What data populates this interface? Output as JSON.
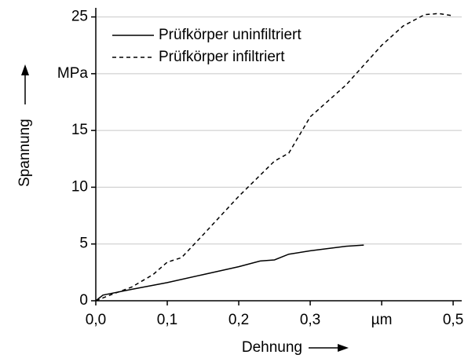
{
  "chart_data": {
    "type": "line",
    "xlabel": "Dehnung",
    "ylabel": "Spannung",
    "xlim": [
      0,
      0.512
    ],
    "ylim": [
      0,
      25.8
    ],
    "xticks": [
      {
        "value": 0,
        "label": "0,0"
      },
      {
        "value": 0.1,
        "label": "0,1"
      },
      {
        "value": 0.2,
        "label": "0,2"
      },
      {
        "value": 0.3,
        "label": "0,3"
      },
      {
        "value": 0.4,
        "label": "µm"
      },
      {
        "value": 0.5,
        "label": "0,5"
      }
    ],
    "yticks": [
      0,
      5,
      10,
      15,
      {
        "value": 20,
        "label": "MPa"
      },
      25
    ],
    "grid": true,
    "legend": "upper left",
    "series": [
      {
        "name": "Prüfkörper uninfiltriert",
        "color": "#000000",
        "style": "solid",
        "x": [
          0,
          0.01,
          0.05,
          0.1,
          0.15,
          0.2,
          0.23,
          0.25,
          0.27,
          0.3,
          0.35,
          0.375
        ],
        "values": [
          0,
          0.5,
          1.0,
          1.6,
          2.3,
          3.0,
          3.5,
          3.6,
          4.1,
          4.4,
          4.8,
          4.9
        ]
      },
      {
        "name": "Prüfkörper infiltriert",
        "color": "#000000",
        "style": "dashed",
        "x": [
          0,
          0.02,
          0.05,
          0.08,
          0.1,
          0.12,
          0.15,
          0.2,
          0.25,
          0.27,
          0.3,
          0.35,
          0.4,
          0.43,
          0.46,
          0.48,
          0.5
        ],
        "values": [
          0,
          0.5,
          1.2,
          2.3,
          3.4,
          3.8,
          5.8,
          9.2,
          12.3,
          13.0,
          16.2,
          19.0,
          22.5,
          24.2,
          25.2,
          25.3,
          25.1
        ]
      }
    ]
  }
}
